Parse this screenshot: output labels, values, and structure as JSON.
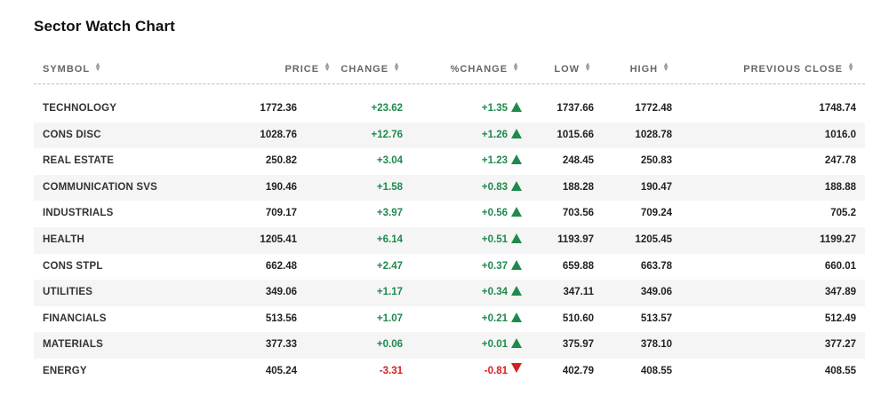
{
  "title": "Sector Watch Chart",
  "colors": {
    "up": "#1f8a4c",
    "down": "#d42020",
    "alt_row": "#f5f5f5"
  },
  "headers": {
    "symbol": "SYMBOL",
    "price": "PRICE",
    "change": "CHANGE",
    "pct_change": "%CHANGE",
    "low": "LOW",
    "high": "HIGH",
    "prev_close": "PREVIOUS CLOSE"
  },
  "rows": [
    {
      "symbol": "TECHNOLOGY",
      "price": "1772.36",
      "change": "+23.62",
      "pct_change": "+1.35",
      "direction": "up",
      "low": "1737.66",
      "high": "1772.48",
      "prev_close": "1748.74"
    },
    {
      "symbol": "CONS DISC",
      "price": "1028.76",
      "change": "+12.76",
      "pct_change": "+1.26",
      "direction": "up",
      "low": "1015.66",
      "high": "1028.78",
      "prev_close": "1016.0"
    },
    {
      "symbol": "REAL ESTATE",
      "price": "250.82",
      "change": "+3.04",
      "pct_change": "+1.23",
      "direction": "up",
      "low": "248.45",
      "high": "250.83",
      "prev_close": "247.78"
    },
    {
      "symbol": "COMMUNICATION SVS",
      "price": "190.46",
      "change": "+1.58",
      "pct_change": "+0.83",
      "direction": "up",
      "low": "188.28",
      "high": "190.47",
      "prev_close": "188.88"
    },
    {
      "symbol": "INDUSTRIALS",
      "price": "709.17",
      "change": "+3.97",
      "pct_change": "+0.56",
      "direction": "up",
      "low": "703.56",
      "high": "709.24",
      "prev_close": "705.2"
    },
    {
      "symbol": "HEALTH",
      "price": "1205.41",
      "change": "+6.14",
      "pct_change": "+0.51",
      "direction": "up",
      "low": "1193.97",
      "high": "1205.45",
      "prev_close": "1199.27"
    },
    {
      "symbol": "CONS STPL",
      "price": "662.48",
      "change": "+2.47",
      "pct_change": "+0.37",
      "direction": "up",
      "low": "659.88",
      "high": "663.78",
      "prev_close": "660.01"
    },
    {
      "symbol": "UTILITIES",
      "price": "349.06",
      "change": "+1.17",
      "pct_change": "+0.34",
      "direction": "up",
      "low": "347.11",
      "high": "349.06",
      "prev_close": "347.89"
    },
    {
      "symbol": "FINANCIALS",
      "price": "513.56",
      "change": "+1.07",
      "pct_change": "+0.21",
      "direction": "up",
      "low": "510.60",
      "high": "513.57",
      "prev_close": "512.49"
    },
    {
      "symbol": "MATERIALS",
      "price": "377.33",
      "change": "+0.06",
      "pct_change": "+0.01",
      "direction": "up",
      "low": "375.97",
      "high": "378.10",
      "prev_close": "377.27"
    },
    {
      "symbol": "ENERGY",
      "price": "405.24",
      "change": "-3.31",
      "pct_change": "-0.81",
      "direction": "down",
      "low": "402.79",
      "high": "408.55",
      "prev_close": "408.55"
    }
  ]
}
